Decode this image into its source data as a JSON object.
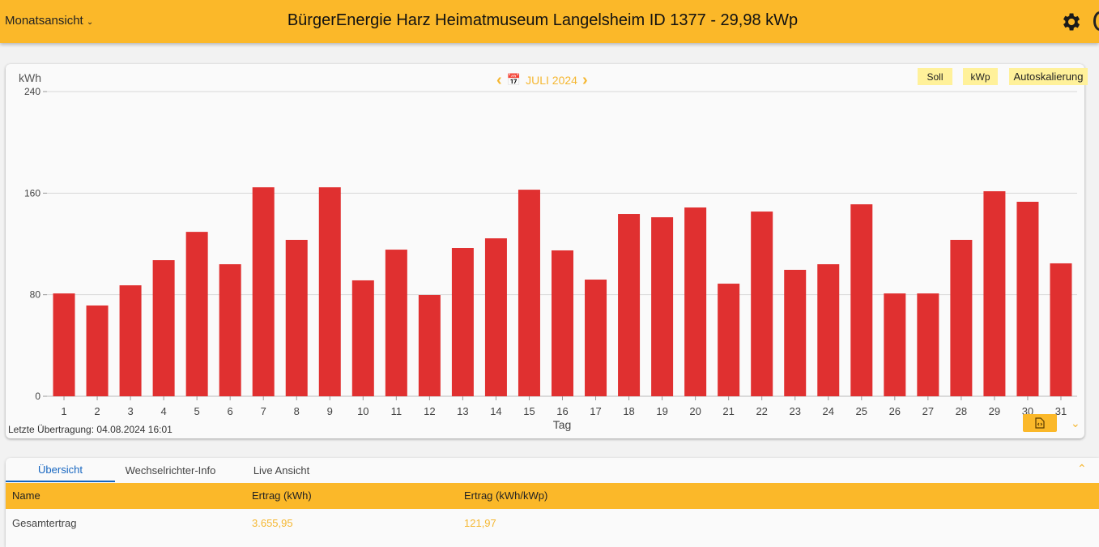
{
  "header": {
    "view_select": "Monatsansicht",
    "title": "BürgerEnergie Harz Heimatmuseum Langelsheim ID 1377 - 29,98 kWp",
    "settings_icon": "gear-icon"
  },
  "chart_controls": {
    "month": "JULI 2024",
    "buttons": [
      "Soll",
      "kWp",
      "Autoskalierung"
    ]
  },
  "colors": {
    "accent": "#fbb829",
    "bar": "#e03030",
    "value_text": "#f5b731"
  },
  "chart_data": {
    "type": "bar",
    "ylabel": "kWh",
    "xlabel": "Tag",
    "ylim": [
      0,
      240
    ],
    "yticks": [
      0,
      80,
      160,
      240
    ],
    "grid": true,
    "categories": [
      "1",
      "2",
      "3",
      "4",
      "5",
      "6",
      "7",
      "8",
      "9",
      "10",
      "11",
      "12",
      "13",
      "14",
      "15",
      "16",
      "17",
      "18",
      "19",
      "20",
      "21",
      "22",
      "23",
      "24",
      "25",
      "26",
      "27",
      "28",
      "29",
      "30",
      "31"
    ],
    "values": [
      81,
      71.5,
      87.4,
      107.2,
      129.5,
      104,
      164.6,
      123.2,
      164.6,
      91.3,
      115.5,
      79.8,
      116.8,
      124.4,
      162.7,
      114.9,
      91.9,
      143.6,
      141,
      148.7,
      88.7,
      145.5,
      99.6,
      104,
      151.2,
      81,
      81,
      123.2,
      161.5,
      153.2,
      104.7
    ]
  },
  "footer": {
    "last_transfer": "Letzte Übertragung: 04.08.2024 16:01"
  },
  "tabs": [
    "Übersicht",
    "Wechselrichter-Info",
    "Live Ansicht"
  ],
  "table": {
    "columns": [
      "Name",
      "Ertrag (kWh)",
      "Ertrag (kWh/kWp)"
    ],
    "rows": [
      [
        "Gesamtertrag",
        "3.655,95",
        "121,97"
      ]
    ]
  }
}
